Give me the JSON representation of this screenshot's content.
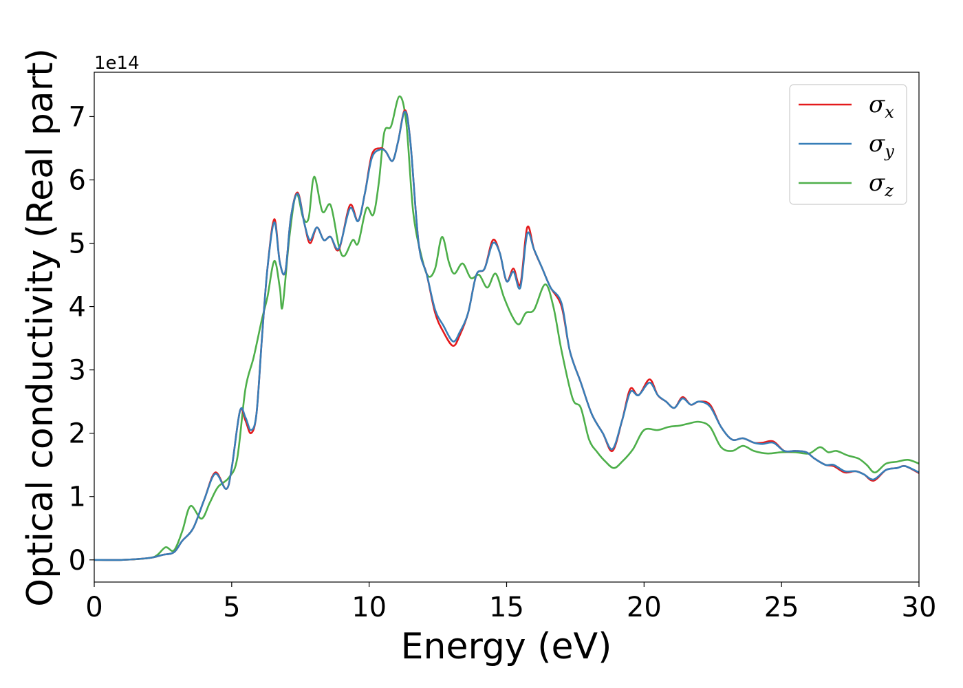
{
  "chart_data": {
    "type": "line",
    "xlabel": "Energy (eV)",
    "ylabel": "Optical conductivity (Real part)",
    "y_offset_text": "1e14",
    "xlim": [
      0,
      30
    ],
    "ylim": [
      -0.35,
      7.7
    ],
    "x_ticks": [
      0,
      5,
      10,
      15,
      20,
      25,
      30
    ],
    "y_ticks": [
      0,
      1,
      2,
      3,
      4,
      5,
      6,
      7
    ],
    "x_tick_labels": [
      "0",
      "5",
      "10",
      "15",
      "20",
      "25",
      "30"
    ],
    "y_tick_labels": [
      "0",
      "1",
      "2",
      "3",
      "4",
      "5",
      "6",
      "7"
    ],
    "grid": false,
    "legend_position": "top-right",
    "series": [
      {
        "name": "σx",
        "symbol": "σ",
        "subscript": "x",
        "color": "#e41a1c",
        "points": [
          [
            0,
            0.0
          ],
          [
            1.0,
            0.0
          ],
          [
            2.0,
            0.03
          ],
          [
            2.5,
            0.08
          ],
          [
            2.9,
            0.12
          ],
          [
            3.2,
            0.3
          ],
          [
            3.6,
            0.5
          ],
          [
            4.0,
            0.95
          ],
          [
            4.4,
            1.38
          ],
          [
            4.8,
            1.12
          ],
          [
            5.0,
            1.45
          ],
          [
            5.3,
            2.35
          ],
          [
            5.5,
            2.2
          ],
          [
            5.7,
            2.0
          ],
          [
            5.9,
            2.3
          ],
          [
            6.1,
            3.5
          ],
          [
            6.3,
            4.6
          ],
          [
            6.55,
            5.38
          ],
          [
            6.75,
            4.7
          ],
          [
            6.95,
            4.55
          ],
          [
            7.15,
            5.4
          ],
          [
            7.4,
            5.8
          ],
          [
            7.65,
            5.3
          ],
          [
            7.85,
            5.0
          ],
          [
            8.1,
            5.25
          ],
          [
            8.35,
            5.05
          ],
          [
            8.6,
            5.1
          ],
          [
            8.9,
            4.9
          ],
          [
            9.3,
            5.6
          ],
          [
            9.6,
            5.35
          ],
          [
            9.85,
            5.8
          ],
          [
            10.1,
            6.4
          ],
          [
            10.4,
            6.5
          ],
          [
            10.6,
            6.45
          ],
          [
            10.85,
            6.3
          ],
          [
            11.05,
            6.6
          ],
          [
            11.3,
            7.1
          ],
          [
            11.5,
            6.6
          ],
          [
            11.8,
            5.0
          ],
          [
            12.1,
            4.5
          ],
          [
            12.4,
            3.9
          ],
          [
            12.7,
            3.6
          ],
          [
            13.05,
            3.38
          ],
          [
            13.3,
            3.55
          ],
          [
            13.6,
            3.9
          ],
          [
            13.9,
            4.5
          ],
          [
            14.2,
            4.6
          ],
          [
            14.5,
            5.05
          ],
          [
            14.75,
            4.85
          ],
          [
            15.0,
            4.4
          ],
          [
            15.25,
            4.6
          ],
          [
            15.5,
            4.35
          ],
          [
            15.75,
            5.25
          ],
          [
            16.0,
            4.9
          ],
          [
            16.3,
            4.6
          ],
          [
            16.6,
            4.3
          ],
          [
            17.0,
            4.0
          ],
          [
            17.3,
            3.3
          ],
          [
            17.7,
            2.8
          ],
          [
            18.1,
            2.3
          ],
          [
            18.5,
            2.0
          ],
          [
            18.85,
            1.72
          ],
          [
            19.2,
            2.2
          ],
          [
            19.5,
            2.7
          ],
          [
            19.8,
            2.6
          ],
          [
            20.2,
            2.85
          ],
          [
            20.5,
            2.6
          ],
          [
            20.8,
            2.5
          ],
          [
            21.1,
            2.4
          ],
          [
            21.4,
            2.57
          ],
          [
            21.7,
            2.45
          ],
          [
            22.0,
            2.5
          ],
          [
            22.4,
            2.45
          ],
          [
            22.8,
            2.1
          ],
          [
            23.2,
            1.9
          ],
          [
            23.6,
            1.92
          ],
          [
            24.0,
            1.85
          ],
          [
            24.3,
            1.85
          ],
          [
            24.7,
            1.87
          ],
          [
            25.1,
            1.72
          ],
          [
            25.5,
            1.72
          ],
          [
            25.9,
            1.7
          ],
          [
            26.2,
            1.6
          ],
          [
            26.6,
            1.5
          ],
          [
            26.9,
            1.48
          ],
          [
            27.3,
            1.38
          ],
          [
            27.7,
            1.4
          ],
          [
            28.0,
            1.35
          ],
          [
            28.35,
            1.25
          ],
          [
            28.8,
            1.42
          ],
          [
            29.2,
            1.45
          ],
          [
            29.5,
            1.48
          ],
          [
            30.0,
            1.37
          ]
        ]
      },
      {
        "name": "σy",
        "symbol": "σ",
        "subscript": "y",
        "color": "#377eb8",
        "points": [
          [
            0,
            0.0
          ],
          [
            1.0,
            0.0
          ],
          [
            2.0,
            0.03
          ],
          [
            2.5,
            0.08
          ],
          [
            2.9,
            0.12
          ],
          [
            3.2,
            0.3
          ],
          [
            3.6,
            0.5
          ],
          [
            4.0,
            0.95
          ],
          [
            4.4,
            1.36
          ],
          [
            4.8,
            1.12
          ],
          [
            5.0,
            1.45
          ],
          [
            5.3,
            2.35
          ],
          [
            5.5,
            2.25
          ],
          [
            5.7,
            2.05
          ],
          [
            5.9,
            2.3
          ],
          [
            6.1,
            3.5
          ],
          [
            6.3,
            4.6
          ],
          [
            6.55,
            5.33
          ],
          [
            6.75,
            4.7
          ],
          [
            6.95,
            4.55
          ],
          [
            7.15,
            5.4
          ],
          [
            7.4,
            5.78
          ],
          [
            7.65,
            5.3
          ],
          [
            7.85,
            5.05
          ],
          [
            8.1,
            5.25
          ],
          [
            8.35,
            5.05
          ],
          [
            8.6,
            5.1
          ],
          [
            8.9,
            4.92
          ],
          [
            9.3,
            5.55
          ],
          [
            9.6,
            5.35
          ],
          [
            9.85,
            5.8
          ],
          [
            10.1,
            6.35
          ],
          [
            10.4,
            6.48
          ],
          [
            10.6,
            6.45
          ],
          [
            10.85,
            6.3
          ],
          [
            11.05,
            6.6
          ],
          [
            11.3,
            7.08
          ],
          [
            11.5,
            6.6
          ],
          [
            11.8,
            5.0
          ],
          [
            12.1,
            4.5
          ],
          [
            12.4,
            3.95
          ],
          [
            12.7,
            3.7
          ],
          [
            13.05,
            3.45
          ],
          [
            13.3,
            3.6
          ],
          [
            13.6,
            3.9
          ],
          [
            13.9,
            4.5
          ],
          [
            14.2,
            4.6
          ],
          [
            14.5,
            5.0
          ],
          [
            14.75,
            4.85
          ],
          [
            15.0,
            4.4
          ],
          [
            15.25,
            4.55
          ],
          [
            15.5,
            4.3
          ],
          [
            15.75,
            5.15
          ],
          [
            16.0,
            4.9
          ],
          [
            16.3,
            4.6
          ],
          [
            16.6,
            4.3
          ],
          [
            17.0,
            4.05
          ],
          [
            17.3,
            3.3
          ],
          [
            17.7,
            2.8
          ],
          [
            18.1,
            2.3
          ],
          [
            18.5,
            2.0
          ],
          [
            18.85,
            1.75
          ],
          [
            19.2,
            2.2
          ],
          [
            19.5,
            2.65
          ],
          [
            19.8,
            2.6
          ],
          [
            20.2,
            2.8
          ],
          [
            20.5,
            2.6
          ],
          [
            20.8,
            2.5
          ],
          [
            21.1,
            2.4
          ],
          [
            21.4,
            2.55
          ],
          [
            21.7,
            2.45
          ],
          [
            22.0,
            2.5
          ],
          [
            22.4,
            2.42
          ],
          [
            22.8,
            2.1
          ],
          [
            23.2,
            1.9
          ],
          [
            23.6,
            1.92
          ],
          [
            24.0,
            1.85
          ],
          [
            24.3,
            1.83
          ],
          [
            24.7,
            1.85
          ],
          [
            25.1,
            1.72
          ],
          [
            25.5,
            1.72
          ],
          [
            25.9,
            1.7
          ],
          [
            26.2,
            1.6
          ],
          [
            26.6,
            1.5
          ],
          [
            26.9,
            1.5
          ],
          [
            27.3,
            1.4
          ],
          [
            27.7,
            1.4
          ],
          [
            28.0,
            1.35
          ],
          [
            28.35,
            1.27
          ],
          [
            28.8,
            1.42
          ],
          [
            29.2,
            1.45
          ],
          [
            29.5,
            1.48
          ],
          [
            30.0,
            1.38
          ]
        ]
      },
      {
        "name": "σz",
        "symbol": "σ",
        "subscript": "z",
        "color": "#4daf4a",
        "points": [
          [
            0,
            0.0
          ],
          [
            1.0,
            0.0
          ],
          [
            2.0,
            0.03
          ],
          [
            2.3,
            0.08
          ],
          [
            2.6,
            0.2
          ],
          [
            2.9,
            0.15
          ],
          [
            3.2,
            0.45
          ],
          [
            3.5,
            0.85
          ],
          [
            3.9,
            0.65
          ],
          [
            4.2,
            0.9
          ],
          [
            4.5,
            1.15
          ],
          [
            4.9,
            1.3
          ],
          [
            5.2,
            1.6
          ],
          [
            5.5,
            2.7
          ],
          [
            5.8,
            3.2
          ],
          [
            6.1,
            3.8
          ],
          [
            6.3,
            4.15
          ],
          [
            6.55,
            4.72
          ],
          [
            6.75,
            4.3
          ],
          [
            6.85,
            4.0
          ],
          [
            7.1,
            5.1
          ],
          [
            7.35,
            5.78
          ],
          [
            7.6,
            5.4
          ],
          [
            7.8,
            5.4
          ],
          [
            8.0,
            6.05
          ],
          [
            8.3,
            5.5
          ],
          [
            8.6,
            5.6
          ],
          [
            8.9,
            4.95
          ],
          [
            9.1,
            4.8
          ],
          [
            9.4,
            5.05
          ],
          [
            9.6,
            5.0
          ],
          [
            9.9,
            5.55
          ],
          [
            10.15,
            5.45
          ],
          [
            10.35,
            5.95
          ],
          [
            10.55,
            6.75
          ],
          [
            10.8,
            6.85
          ],
          [
            11.1,
            7.32
          ],
          [
            11.35,
            6.9
          ],
          [
            11.6,
            5.5
          ],
          [
            11.9,
            4.8
          ],
          [
            12.15,
            4.48
          ],
          [
            12.4,
            4.6
          ],
          [
            12.65,
            5.1
          ],
          [
            12.9,
            4.7
          ],
          [
            13.1,
            4.52
          ],
          [
            13.4,
            4.68
          ],
          [
            13.7,
            4.45
          ],
          [
            14.0,
            4.5
          ],
          [
            14.3,
            4.3
          ],
          [
            14.6,
            4.52
          ],
          [
            14.9,
            4.15
          ],
          [
            15.2,
            3.85
          ],
          [
            15.45,
            3.72
          ],
          [
            15.7,
            3.9
          ],
          [
            16.0,
            3.95
          ],
          [
            16.4,
            4.35
          ],
          [
            16.7,
            4.0
          ],
          [
            17.0,
            3.3
          ],
          [
            17.4,
            2.55
          ],
          [
            17.7,
            2.4
          ],
          [
            18.0,
            1.9
          ],
          [
            18.3,
            1.7
          ],
          [
            18.6,
            1.55
          ],
          [
            18.9,
            1.45
          ],
          [
            19.2,
            1.55
          ],
          [
            19.6,
            1.75
          ],
          [
            20.0,
            2.05
          ],
          [
            20.5,
            2.05
          ],
          [
            20.9,
            2.1
          ],
          [
            21.3,
            2.12
          ],
          [
            21.6,
            2.15
          ],
          [
            22.0,
            2.18
          ],
          [
            22.4,
            2.1
          ],
          [
            22.8,
            1.78
          ],
          [
            23.2,
            1.72
          ],
          [
            23.6,
            1.8
          ],
          [
            24.0,
            1.72
          ],
          [
            24.5,
            1.68
          ],
          [
            25.0,
            1.7
          ],
          [
            25.5,
            1.7
          ],
          [
            26.0,
            1.68
          ],
          [
            26.4,
            1.78
          ],
          [
            26.7,
            1.7
          ],
          [
            27.0,
            1.72
          ],
          [
            27.4,
            1.65
          ],
          [
            27.8,
            1.6
          ],
          [
            28.1,
            1.5
          ],
          [
            28.4,
            1.38
          ],
          [
            28.8,
            1.52
          ],
          [
            29.2,
            1.55
          ],
          [
            29.6,
            1.58
          ],
          [
            30.0,
            1.52
          ]
        ]
      }
    ]
  }
}
